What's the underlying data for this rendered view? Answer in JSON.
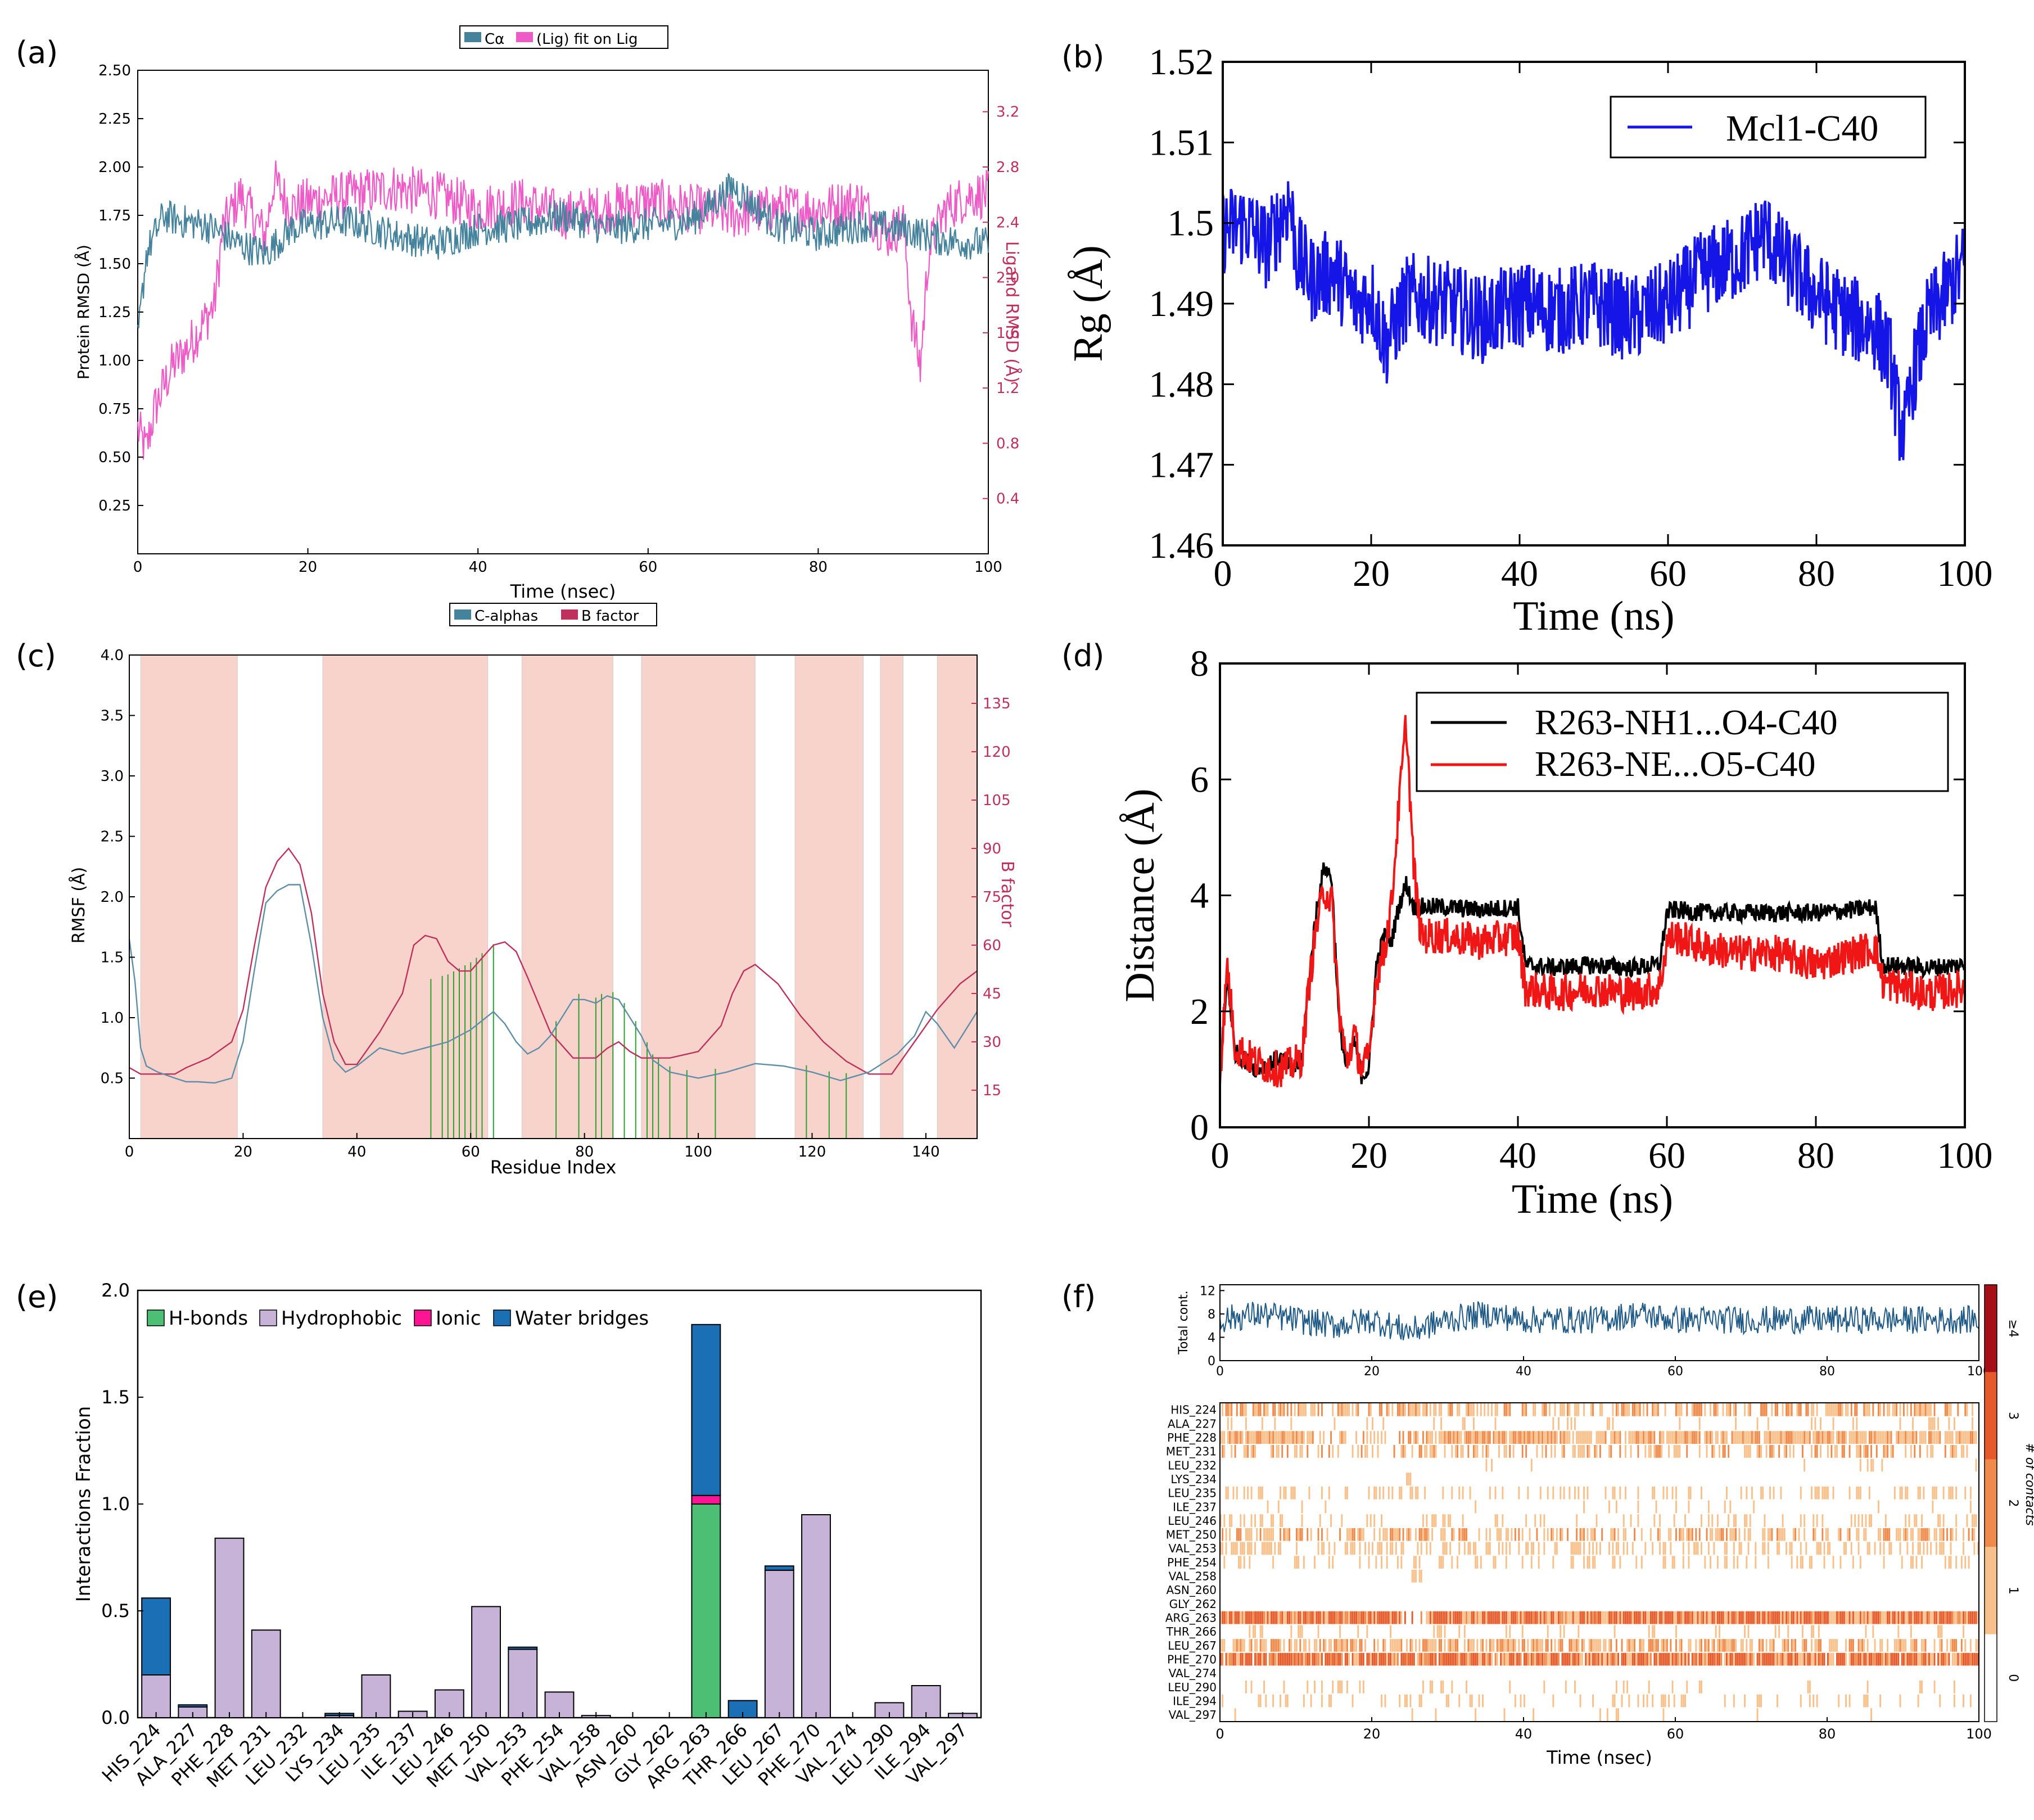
{
  "colors": {
    "ca_teal": "#45829c",
    "lig_pink": "#ee5bc6",
    "bfactor": "#c0305c",
    "band": "#f7d3cc",
    "contact_green": "#2ca02c",
    "rg_blue": "#1515e8",
    "dist_black": "#000000",
    "dist_red": "#f01616",
    "hbond": "#4dbf74",
    "hydrophobic": "#c7b3d8",
    "ionic": "#ff1493",
    "water": "#1a6fb5",
    "total_line": "#1f5a87",
    "heat1": "#f8c08a",
    "heat2": "#f08a4b",
    "heat3": "#e65a2a",
    "heat4": "#a50f15"
  },
  "chart_data": [
    {
      "id": "a",
      "panel_label": "(a)",
      "type": "line",
      "legend": [
        "Cα",
        "(Lig) fit on Lig"
      ],
      "xlabel": "Time (nsec)",
      "ylabel": "Protein RMSD (Å)",
      "ylabel_right": "Ligand RMSD (Å)",
      "xlim": [
        0,
        100
      ],
      "ylim": [
        0,
        2.5
      ],
      "ylim_right": [
        0,
        3.5
      ],
      "xticks": [
        "0",
        "20",
        "40",
        "60",
        "80",
        "100"
      ],
      "yticks": [
        "0.25",
        "0.50",
        "0.75",
        "1.00",
        "1.25",
        "1.50",
        "1.75",
        "2.00",
        "2.25",
        "2.50"
      ],
      "yticks_right": [
        "0.4",
        "0.8",
        "1.2",
        "1.6",
        "2.0",
        "2.4",
        "2.8",
        "3.2"
      ],
      "series": [
        {
          "name": "Cα",
          "axis": "left",
          "x": [
            0,
            1,
            2,
            3,
            5,
            8,
            10,
            12,
            15,
            18,
            20,
            25,
            30,
            35,
            40,
            45,
            50,
            55,
            60,
            65,
            70,
            75,
            80,
            85,
            90,
            95,
            100
          ],
          "y": [
            1.1,
            1.55,
            1.65,
            1.75,
            1.72,
            1.7,
            1.65,
            1.6,
            1.55,
            1.68,
            1.7,
            1.72,
            1.65,
            1.6,
            1.68,
            1.7,
            1.75,
            1.68,
            1.7,
            1.72,
            1.9,
            1.7,
            1.65,
            1.7,
            1.68,
            1.62,
            1.6
          ]
        },
        {
          "name": "(Lig) fit on Lig",
          "axis": "right",
          "x": [
            0,
            1,
            2,
            4,
            6,
            8,
            9,
            10,
            12,
            15,
            16,
            18,
            20,
            25,
            30,
            35,
            40,
            45,
            50,
            55,
            60,
            65,
            70,
            75,
            80,
            85,
            88,
            90,
            91,
            92,
            93,
            95,
            98,
            100
          ],
          "y": [
            0.9,
            0.75,
            1.05,
            1.35,
            1.5,
            1.7,
            1.8,
            2.35,
            2.6,
            2.3,
            2.7,
            2.5,
            2.55,
            2.6,
            2.65,
            2.6,
            2.5,
            2.55,
            2.45,
            2.5,
            2.55,
            2.5,
            2.45,
            2.5,
            2.5,
            2.55,
            2.3,
            2.4,
            1.7,
            1.35,
            2.2,
            2.5,
            2.6,
            2.6
          ]
        }
      ]
    },
    {
      "id": "b",
      "panel_label": "(b)",
      "type": "line",
      "legend": [
        "Mcl1-C40"
      ],
      "xlabel": "Time (ns)",
      "ylabel": "Rg (Å)",
      "xlim": [
        0,
        100
      ],
      "ylim": [
        1.46,
        1.52
      ],
      "xticks": [
        "0",
        "20",
        "40",
        "60",
        "80",
        "100"
      ],
      "yticks": [
        "1.46",
        "1.47",
        "1.48",
        "1.49",
        "1.5",
        "1.51",
        "1.52"
      ],
      "series": [
        {
          "name": "Mcl1-C40",
          "x": [
            0,
            3,
            6,
            9,
            10,
            12,
            15,
            18,
            20,
            22,
            25,
            30,
            35,
            40,
            45,
            50,
            55,
            60,
            65,
            70,
            73,
            75,
            78,
            80,
            85,
            88,
            90,
            91,
            92,
            93,
            95,
            98,
            100
          ],
          "y": [
            1.499,
            1.5,
            1.497,
            1.503,
            1.496,
            1.493,
            1.494,
            1.49,
            1.491,
            1.485,
            1.491,
            1.49,
            1.488,
            1.49,
            1.489,
            1.49,
            1.488,
            1.49,
            1.494,
            1.496,
            1.499,
            1.496,
            1.493,
            1.491,
            1.488,
            1.487,
            1.483,
            1.476,
            1.474,
            1.481,
            1.488,
            1.492,
            1.495
          ]
        }
      ]
    },
    {
      "id": "c",
      "panel_label": "(c)",
      "type": "line",
      "legend": [
        "C-alphas",
        "B factor"
      ],
      "xlabel": "Residue Index",
      "ylabel": "RMSF (Å)",
      "ylabel_right": "B factor",
      "xlim": [
        0,
        149
      ],
      "ylim": [
        0,
        4.0
      ],
      "ylim_right": [
        0,
        150
      ],
      "xticks": [
        "0",
        "20",
        "40",
        "60",
        "80",
        "100",
        "120",
        "140"
      ],
      "yticks": [
        "0.5",
        "1.0",
        "1.5",
        "2.0",
        "2.5",
        "3.0",
        "3.5",
        "4.0"
      ],
      "yticks_right": [
        "15",
        "30",
        "45",
        "60",
        "75",
        "90",
        "105",
        "120",
        "135"
      ],
      "secondary_structure_regions": [
        [
          2,
          19
        ],
        [
          34,
          63
        ],
        [
          69,
          85
        ],
        [
          90,
          110
        ],
        [
          117,
          129
        ],
        [
          132,
          136
        ],
        [
          142,
          149
        ]
      ],
      "contact_residues": [
        53,
        55,
        56,
        57,
        58,
        59,
        60,
        61,
        62,
        64,
        75,
        79,
        82,
        83,
        85,
        87,
        89,
        91,
        92,
        93,
        95,
        98,
        103,
        119,
        123,
        126
      ],
      "series": [
        {
          "name": "C-alphas",
          "x": [
            0,
            1,
            2,
            3,
            5,
            8,
            10,
            12,
            15,
            18,
            20,
            22,
            24,
            26,
            28,
            30,
            32,
            34,
            36,
            38,
            40,
            44,
            48,
            52,
            56,
            60,
            64,
            66,
            68,
            70,
            72,
            74,
            76,
            78,
            80,
            82,
            84,
            86,
            88,
            90,
            92,
            95,
            100,
            105,
            110,
            115,
            120,
            125,
            130,
            135,
            138,
            140,
            142,
            145,
            149
          ],
          "y": [
            1.65,
            1.3,
            0.75,
            0.6,
            0.55,
            0.5,
            0.47,
            0.47,
            0.46,
            0.5,
            0.8,
            1.4,
            1.95,
            2.05,
            2.1,
            2.1,
            1.6,
            1.0,
            0.65,
            0.55,
            0.6,
            0.75,
            0.7,
            0.75,
            0.8,
            0.9,
            1.05,
            0.95,
            0.8,
            0.7,
            0.75,
            0.85,
            1.0,
            1.15,
            1.15,
            1.12,
            1.18,
            1.15,
            1.0,
            0.85,
            0.65,
            0.55,
            0.5,
            0.55,
            0.62,
            0.6,
            0.55,
            0.48,
            0.55,
            0.7,
            0.85,
            1.05,
            0.95,
            0.75,
            1.05
          ]
        },
        {
          "name": "B factor",
          "x": [
            0,
            2,
            5,
            8,
            10,
            14,
            18,
            20,
            22,
            24,
            26,
            28,
            30,
            32,
            34,
            36,
            38,
            40,
            44,
            48,
            50,
            52,
            54,
            56,
            58,
            60,
            62,
            64,
            66,
            68,
            70,
            74,
            78,
            82,
            84,
            86,
            88,
            90,
            92,
            95,
            100,
            104,
            106,
            108,
            110,
            114,
            118,
            122,
            126,
            128,
            130,
            134,
            138,
            142,
            146,
            149
          ],
          "y": [
            22,
            20,
            20,
            20,
            22,
            25,
            30,
            40,
            60,
            78,
            86,
            90,
            85,
            70,
            45,
            30,
            23,
            23,
            33,
            45,
            60,
            63,
            62,
            55,
            52,
            52,
            56,
            60,
            61,
            58,
            50,
            33,
            25,
            25,
            28,
            30,
            27,
            25,
            25,
            25,
            27,
            35,
            45,
            52,
            54,
            48,
            38,
            30,
            24,
            22,
            20,
            20,
            30,
            40,
            48,
            52
          ]
        }
      ]
    },
    {
      "id": "d",
      "panel_label": "(d)",
      "type": "line",
      "legend": [
        "R263-NH1...O4-C40",
        "R263-NE...O5-C40"
      ],
      "xlabel": "Time (ns)",
      "ylabel": "Distance (Å)",
      "xlim": [
        0,
        100
      ],
      "ylim": [
        0,
        8
      ],
      "xticks": [
        "0",
        "20",
        "40",
        "60",
        "80",
        "100"
      ],
      "yticks": [
        "0",
        "2",
        "4",
        "6",
        "8"
      ],
      "series": [
        {
          "name": "R263-NH1...O4-C40",
          "x": [
            0,
            1,
            2,
            5,
            8,
            10,
            11,
            12,
            13,
            14,
            15,
            16,
            17,
            18,
            19,
            20,
            21,
            22,
            23,
            24,
            25,
            26,
            27,
            30,
            35,
            40,
            41,
            45,
            50,
            55,
            59,
            60,
            61,
            65,
            70,
            75,
            80,
            85,
            88,
            89,
            95,
            100
          ],
          "y": [
            1.0,
            2.6,
            1.3,
            1.0,
            1.2,
            1.0,
            1.2,
            2.6,
            3.8,
            4.5,
            4.3,
            1.8,
            1.0,
            1.5,
            0.9,
            1.0,
            2.8,
            3.3,
            3.2,
            3.8,
            4.2,
            3.8,
            3.8,
            3.8,
            3.75,
            3.8,
            2.8,
            2.75,
            2.8,
            2.75,
            2.8,
            3.7,
            3.75,
            3.7,
            3.7,
            3.7,
            3.7,
            3.75,
            3.8,
            2.8,
            2.75,
            2.8
          ]
        },
        {
          "name": "R263-NE...O5-C40",
          "x": [
            0,
            1,
            2,
            5,
            8,
            10,
            11,
            12,
            13,
            14,
            15,
            16,
            17,
            18,
            19,
            20,
            21,
            22,
            23,
            24,
            25,
            26,
            27,
            30,
            35,
            40,
            41,
            45,
            50,
            55,
            59,
            60,
            61,
            65,
            70,
            75,
            80,
            85,
            88,
            89,
            95,
            100
          ],
          "y": [
            0.9,
            2.8,
            1.4,
            1.1,
            1.0,
            1.1,
            1.2,
            2.5,
            3.5,
            4.1,
            3.9,
            2.0,
            1.1,
            1.6,
            1.0,
            1.2,
            2.6,
            3.0,
            3.8,
            5.5,
            7.0,
            4.5,
            3.3,
            3.3,
            3.2,
            3.3,
            2.4,
            2.3,
            2.4,
            2.3,
            2.4,
            3.2,
            3.3,
            3.1,
            3.0,
            3.0,
            2.8,
            3.0,
            3.1,
            2.5,
            2.3,
            2.4
          ]
        }
      ]
    },
    {
      "id": "e",
      "panel_label": "(e)",
      "type": "bar",
      "stacked": true,
      "ylabel": "Interactions Fraction",
      "ylim": [
        0,
        2.0
      ],
      "yticks": [
        "0.0",
        "0.5",
        "1.0",
        "1.5",
        "2.0"
      ],
      "legend": [
        "H-bonds",
        "Hydrophobic",
        "Ionic",
        "Water bridges"
      ],
      "categories": [
        "HIS_224",
        "ALA_227",
        "PHE_228",
        "MET_231",
        "LEU_232",
        "LYS_234",
        "LEU_235",
        "ILE_237",
        "LEU_246",
        "MET_250",
        "VAL_253",
        "PHE_254",
        "VAL_258",
        "ASN_260",
        "GLY_262",
        "ARG_263",
        "THR_266",
        "LEU_267",
        "PHE_270",
        "VAL_274",
        "LEU_290",
        "ILE_294",
        "VAL_297"
      ],
      "series": [
        {
          "name": "H-bonds",
          "values": [
            0.0,
            0.0,
            0.0,
            0.0,
            0.0,
            0.0,
            0.0,
            0.0,
            0.0,
            0.0,
            0.0,
            0.0,
            0.0,
            0.0,
            0.0,
            1.0,
            0.0,
            0.0,
            0.0,
            0.0,
            0.0,
            0.0,
            0.0
          ]
        },
        {
          "name": "Hydrophobic",
          "values": [
            0.2,
            0.05,
            0.84,
            0.41,
            0.0,
            0.01,
            0.2,
            0.03,
            0.13,
            0.52,
            0.32,
            0.12,
            0.01,
            0.0,
            0.0,
            0.0,
            0.0,
            0.69,
            0.95,
            0.0,
            0.07,
            0.15,
            0.02
          ]
        },
        {
          "name": "Ionic",
          "values": [
            0.0,
            0.0,
            0.0,
            0.0,
            0.0,
            0.0,
            0.0,
            0.0,
            0.0,
            0.0,
            0.0,
            0.0,
            0.0,
            0.0,
            0.0,
            0.04,
            0.0,
            0.0,
            0.0,
            0.0,
            0.0,
            0.0,
            0.0
          ]
        },
        {
          "name": "Water bridges",
          "values": [
            0.36,
            0.01,
            0.0,
            0.0,
            0.0,
            0.01,
            0.0,
            0.0,
            0.0,
            0.0,
            0.01,
            0.0,
            0.0,
            0.0,
            0.0,
            0.8,
            0.08,
            0.02,
            0.0,
            0.0,
            0.0,
            0.0,
            0.0
          ]
        }
      ]
    },
    {
      "id": "f",
      "panel_label": "(f)",
      "type": "heatmap",
      "top_ylabel": "Total cont.",
      "top_yticks": [
        "0",
        "4",
        "8",
        "12"
      ],
      "top_ylim": [
        0,
        13
      ],
      "top_series": {
        "x": [
          0,
          5,
          10,
          15,
          20,
          25,
          30,
          35,
          40,
          45,
          50,
          55,
          60,
          65,
          70,
          75,
          80,
          85,
          90,
          95,
          100
        ],
        "y": [
          7,
          8,
          7,
          6,
          7,
          5,
          7,
          8,
          7,
          7,
          7,
          8,
          7,
          7,
          7,
          7,
          7,
          7,
          7,
          7,
          7
        ]
      },
      "xlabel": "Time (nsec)",
      "xlim": [
        0,
        100
      ],
      "xticks": [
        "0",
        "20",
        "40",
        "60",
        "80",
        "100"
      ],
      "colorbar_label": "# of contacts",
      "colorbar_ticks": [
        "0",
        "1",
        "2",
        "3",
        "≥4"
      ],
      "rows": [
        "HIS_224",
        "ALA_227",
        "PHE_228",
        "MET_231",
        "LEU_232",
        "LYS_234",
        "LEU_235",
        "ILE_237",
        "LEU_246",
        "MET_250",
        "VAL_253",
        "PHE_254",
        "VAL_258",
        "ASN_260",
        "GLY_262",
        "ARG_263",
        "THR_266",
        "LEU_267",
        "PHE_270",
        "VAL_274",
        "LEU_290",
        "ILE_294",
        "VAL_297"
      ],
      "row_occupancy": [
        0.55,
        0.1,
        0.85,
        0.45,
        0.02,
        0.01,
        0.25,
        0.04,
        0.2,
        0.5,
        0.35,
        0.2,
        0.01,
        0.0,
        0.0,
        1.0,
        0.1,
        0.65,
        0.95,
        0.0,
        0.1,
        0.18,
        0.04
      ]
    }
  ]
}
